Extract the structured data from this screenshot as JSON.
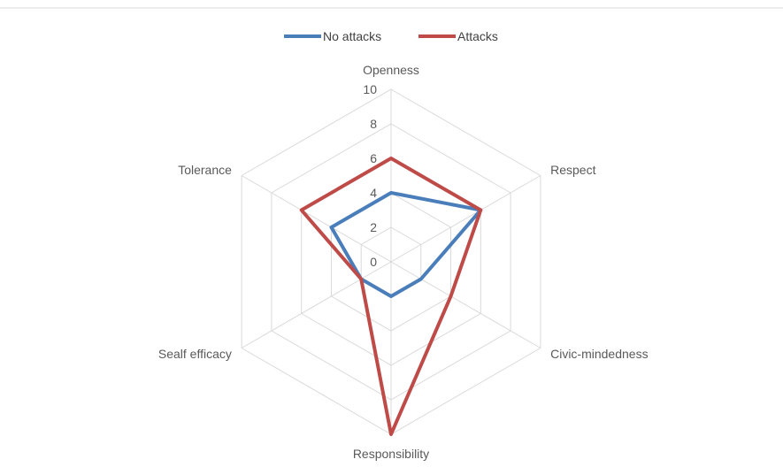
{
  "chart_data": {
    "type": "radar",
    "categories": [
      "Openness",
      "Respect",
      "Civic-mindedness",
      "Responsibility",
      "Sealf efficacy",
      "Tolerance"
    ],
    "rlim": [
      0,
      10
    ],
    "rticks": [
      "0",
      "2",
      "4",
      "6",
      "8",
      "10"
    ],
    "grid": true,
    "legend": "top-center",
    "series": [
      {
        "name": "No attacks",
        "color": "#4a7ebb",
        "values": [
          4,
          6,
          2,
          2,
          2,
          4
        ]
      },
      {
        "name": "Attacks",
        "color": "#be4b48",
        "values": [
          6,
          6,
          4,
          10,
          2,
          6
        ]
      }
    ]
  }
}
